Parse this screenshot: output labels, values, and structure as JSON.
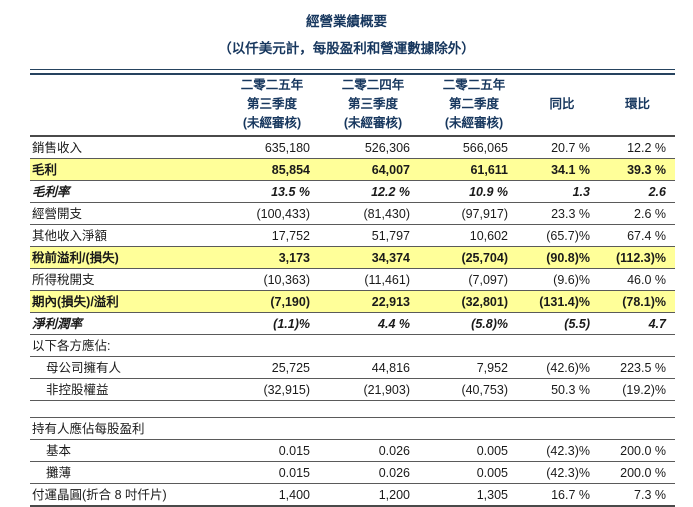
{
  "title": "經營業績概要",
  "subtitle": "（以仟美元計，每股盈利和營運數據除外）",
  "colors": {
    "heading_text": "#17375E",
    "highlight_row": "#FFFF99",
    "body_text": "#1A1A1A",
    "rule_line": "#4A4A4A"
  },
  "table": {
    "columns": [
      {
        "lines": [
          "二零二五年",
          "第三季度",
          "(未經審核)"
        ]
      },
      {
        "lines": [
          "二零二四年",
          "第三季度",
          "(未經審核)"
        ]
      },
      {
        "lines": [
          "二零二五年",
          "第二季度",
          "(未經審核)"
        ]
      },
      {
        "lines": [
          "",
          "同比",
          ""
        ]
      },
      {
        "lines": [
          "",
          "環比",
          ""
        ]
      }
    ],
    "rows": [
      {
        "label": "銷售收入",
        "values": [
          "635,180",
          "526,306",
          "566,065",
          "20.7 %",
          "12.2 %"
        ]
      },
      {
        "label": "毛利",
        "values": [
          "85,854",
          "64,007",
          "61,611",
          "34.1 %",
          "39.3 %"
        ]
      },
      {
        "label": "毛利率",
        "values": [
          "13.5 %",
          "12.2 %",
          "10.9 %",
          "1.3",
          "2.6"
        ]
      },
      {
        "label": "經營開支",
        "values": [
          "(100,433)",
          "(81,430)",
          "(97,917)",
          "23.3 %",
          "2.6 %"
        ]
      },
      {
        "label": "其他收入淨額",
        "values": [
          "17,752",
          "51,797",
          "10,602",
          "(65.7)%",
          "67.4 %"
        ]
      },
      {
        "label": "稅前溢利/(損失)",
        "values": [
          "3,173",
          "34,374",
          "(25,704)",
          "(90.8)%",
          "(112.3)%"
        ]
      },
      {
        "label": "所得稅開支",
        "values": [
          "(10,363)",
          "(11,461)",
          "(7,097)",
          "(9.6)%",
          "46.0 %"
        ]
      },
      {
        "label": "期內(損失)/溢利",
        "values": [
          "(7,190)",
          "22,913",
          "(32,801)",
          "(131.4)%",
          "(78.1)%"
        ]
      },
      {
        "label": "淨利潤率",
        "values": [
          "(1.1)%",
          "4.4 %",
          "(5.8)%",
          "(5.5)",
          "4.7"
        ]
      },
      {
        "label": "以下各方應佔:",
        "values": [
          "",
          "",
          "",
          "",
          ""
        ]
      },
      {
        "label": "母公司擁有人",
        "values": [
          "25,725",
          "44,816",
          "7,952",
          "(42.6)%",
          "223.5 %"
        ]
      },
      {
        "label": "非控股權益",
        "values": [
          "(32,915)",
          "(21,903)",
          "(40,753)",
          "50.3 %",
          "(19.2)%"
        ]
      },
      {
        "label": "持有人應佔每股盈利",
        "values": [
          "",
          "",
          "",
          "",
          ""
        ]
      },
      {
        "label": "基本",
        "values": [
          "0.015",
          "0.026",
          "0.005",
          "(42.3)%",
          "200.0 %"
        ]
      },
      {
        "label": "攤薄",
        "values": [
          "0.015",
          "0.026",
          "0.005",
          "(42.3)%",
          "200.0 %"
        ]
      },
      {
        "label": "付運晶圓(折合 8 吋仟片)",
        "values": [
          "1,400",
          "1,200",
          "1,305",
          "16.7 %",
          "7.3 %"
        ]
      }
    ]
  }
}
